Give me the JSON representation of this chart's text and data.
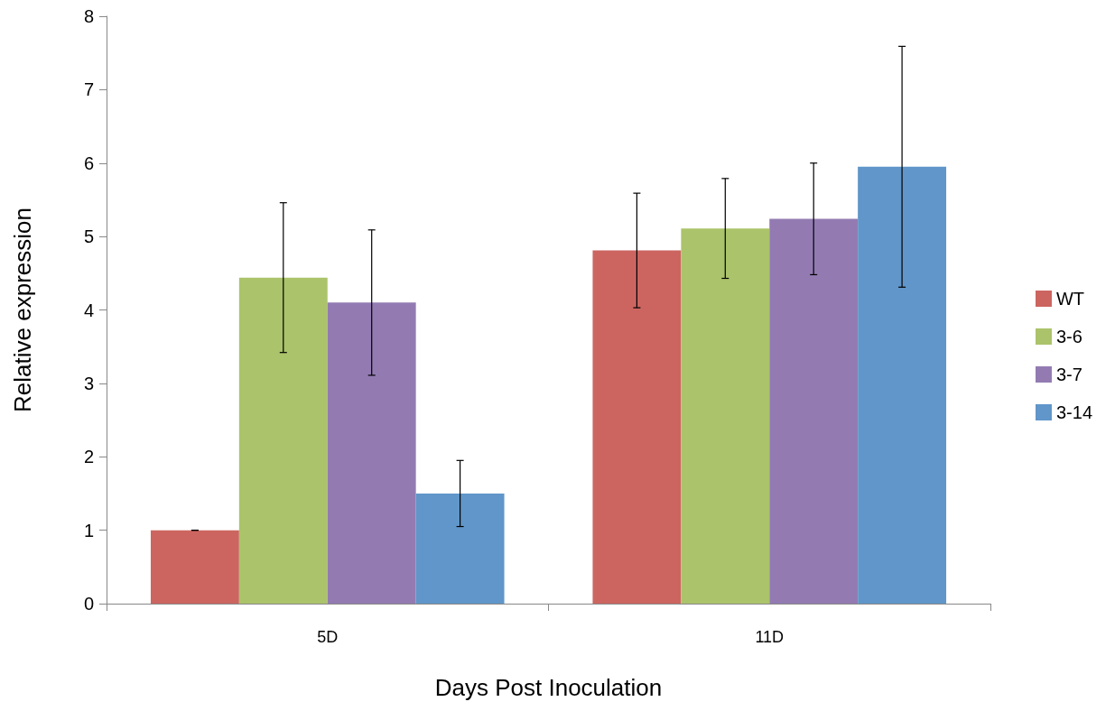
{
  "chart_data": {
    "type": "bar",
    "xlabel": "Days Post Inoculation",
    "ylabel": "Relative expression",
    "categories": [
      "5D",
      "11D"
    ],
    "series": [
      {
        "name": "WT",
        "color": "#cc6560",
        "values": [
          1.0,
          4.81
        ],
        "errors": [
          0,
          0.78
        ]
      },
      {
        "name": "3-6",
        "color": "#abc36a",
        "values": [
          4.44,
          5.11
        ],
        "errors": [
          1.02,
          0.68
        ]
      },
      {
        "name": "3-7",
        "color": "#937bb2",
        "values": [
          4.1,
          5.24
        ],
        "errors": [
          0.99,
          0.76
        ]
      },
      {
        "name": "3-14",
        "color": "#6096c9",
        "values": [
          1.5,
          5.95
        ],
        "errors": [
          0.45,
          1.64
        ]
      }
    ],
    "ylim": [
      0,
      8
    ],
    "yticks": [
      0,
      1,
      2,
      3,
      4,
      5,
      6,
      7,
      8
    ],
    "grid": false,
    "legend": "right"
  }
}
